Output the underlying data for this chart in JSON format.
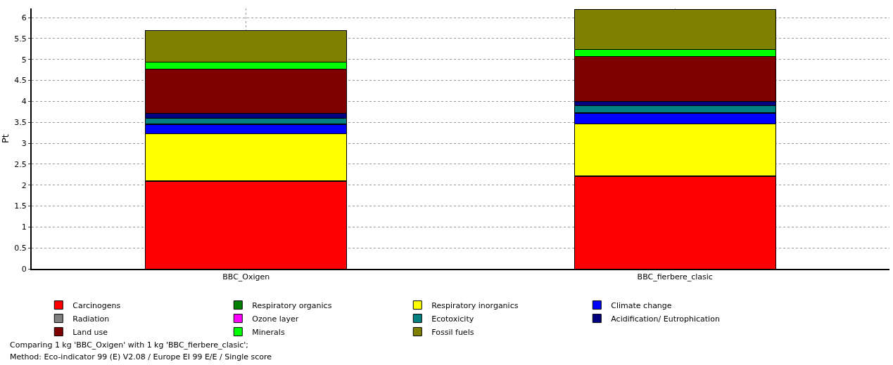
{
  "chart_data": {
    "type": "bar",
    "stacked": true,
    "ylabel": "Pt",
    "categories": [
      "BBC_Oxigen",
      "BBC_fierbere_clasic"
    ],
    "ylim": [
      0,
      6.22
    ],
    "yticks": [
      0,
      0.5,
      1,
      1.5,
      2,
      2.5,
      3,
      3.5,
      4,
      4.5,
      5,
      5.5,
      6
    ],
    "grid": true,
    "legend": "bottom",
    "series": [
      {
        "name": "Carcinogens",
        "color": "#ff0000",
        "values": [
          2.09,
          2.21
        ]
      },
      {
        "name": "Respiratory organics",
        "color": "#008000",
        "values": [
          0.01,
          0.01
        ]
      },
      {
        "name": "Respiratory inorganics",
        "color": "#ffff00",
        "values": [
          1.13,
          1.25
        ]
      },
      {
        "name": "Climate change",
        "color": "#0000ff",
        "values": [
          0.22,
          0.25
        ]
      },
      {
        "name": "Radiation",
        "color": "#808080",
        "values": [
          0,
          0
        ]
      },
      {
        "name": "Ozone layer",
        "color": "#ff00ff",
        "values": [
          0.01,
          0.01
        ]
      },
      {
        "name": "Ecotoxicity",
        "color": "#008080",
        "values": [
          0.14,
          0.17
        ]
      },
      {
        "name": "Acidification/ Eutrophication",
        "color": "#000080",
        "values": [
          0.11,
          0.1
        ]
      },
      {
        "name": "Land use",
        "color": "#800000",
        "values": [
          1.06,
          1.08
        ]
      },
      {
        "name": "Minerals",
        "color": "#00ff00",
        "values": [
          0.16,
          0.16
        ]
      },
      {
        "name": "Fossil fuels",
        "color": "#808000",
        "values": [
          0.77,
          0.96
        ]
      }
    ],
    "annotations": [
      "Comparing 1 kg 'BBC_Oxigen' with 1 kg 'BBC_fierbere_clasic';",
      "Method: Eco-indicator 99 (E) V2.08 / Europe EI 99 E/E / Single score"
    ]
  }
}
